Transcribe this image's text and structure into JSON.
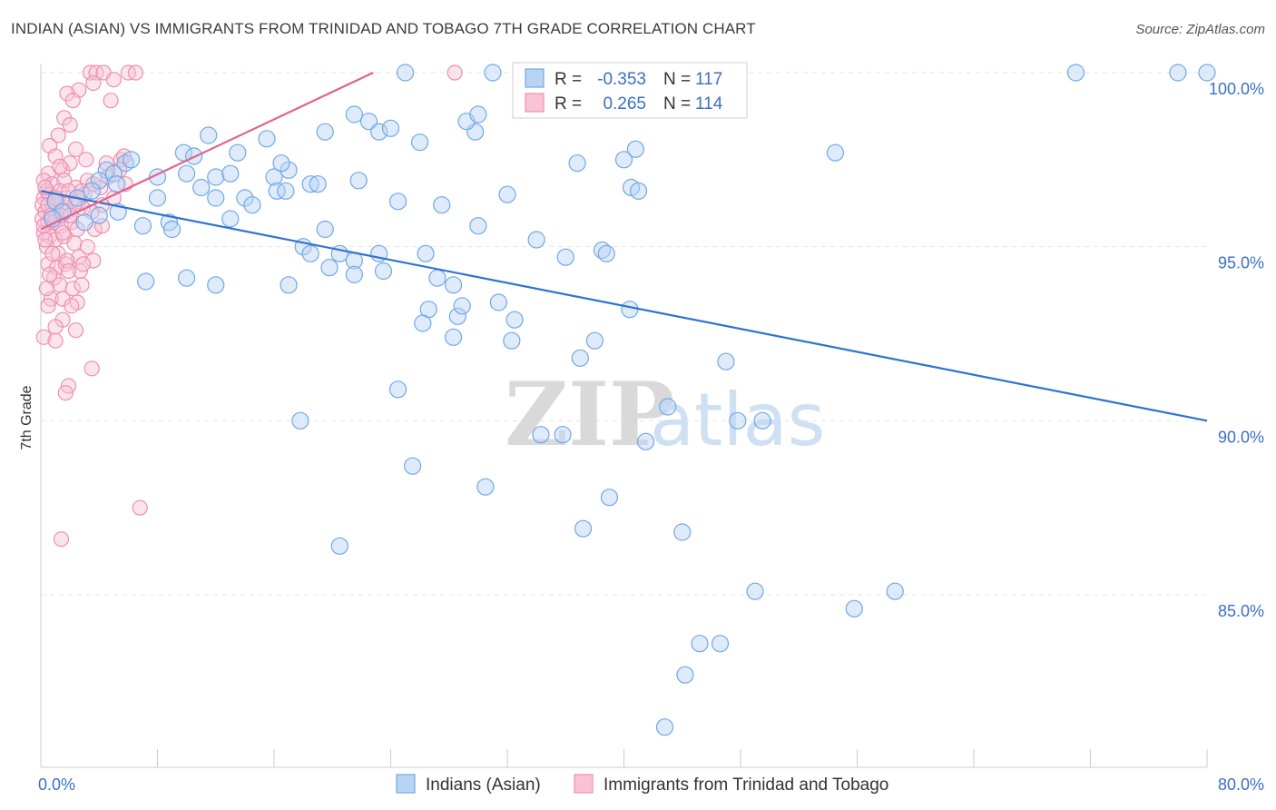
{
  "title": "INDIAN (ASIAN) VS IMMIGRANTS FROM TRINIDAD AND TOBAGO 7TH GRADE CORRELATION CHART",
  "source": "Source: ZipAtlas.com",
  "watermark": {
    "zip": "ZIP",
    "atlas": "atlas"
  },
  "colors": {
    "blue": "#6fa8e8",
    "blue_fill": "#b9d3f3",
    "blue_line": "#2f73d0",
    "pink": "#ee8fb0",
    "pink_fill": "#f7c3d5",
    "pink_line": "#e0648f",
    "tick": "#3b6fc4",
    "grid": "#e5e5e5"
  },
  "chart_data": {
    "type": "scatter",
    "title": "INDIAN (ASIAN) VS IMMIGRANTS FROM TRINIDAD AND TOBAGO 7TH GRADE CORRELATION CHART",
    "xlabel": "",
    "ylabel": "7th Grade",
    "xlim": [
      0,
      80
    ],
    "ylim": [
      80.5,
      100.5
    ],
    "x_ticks_labeled": [
      "0.0%",
      "80.0%"
    ],
    "y_ticks": [
      {
        "value": 100,
        "label": "100.0%"
      },
      {
        "value": 95,
        "label": "95.0%"
      },
      {
        "value": 90,
        "label": "90.0%"
      },
      {
        "value": 85,
        "label": "85.0%"
      }
    ],
    "grid": true,
    "legend": {
      "position": "top-center",
      "rows": [
        {
          "r_label": "R =",
          "r_value": "-0.353",
          "n_label": "N =",
          "n_value": "117"
        },
        {
          "r_label": "R =",
          "r_value": "0.265",
          "n_label": "N =",
          "n_value": "114"
        }
      ]
    },
    "series": [
      {
        "name": "Indians (Asian)",
        "color": "#6fa8e8",
        "trend": {
          "x0": 0,
          "y0": 96.6,
          "x1": 80,
          "y1": 90.0
        },
        "points": [
          [
            25,
            100
          ],
          [
            31,
            100
          ],
          [
            71,
            100
          ],
          [
            78,
            100
          ],
          [
            80,
            100
          ],
          [
            21.5,
            98.8
          ],
          [
            22.5,
            98.6
          ],
          [
            23.2,
            98.3
          ],
          [
            24,
            98.4
          ],
          [
            26,
            98
          ],
          [
            29.8,
            98.3
          ],
          [
            29.2,
            98.6
          ],
          [
            30,
            98.8
          ],
          [
            19.5,
            98.3
          ],
          [
            11.5,
            98.2
          ],
          [
            9.8,
            97.7
          ],
          [
            10.5,
            97.6
          ],
          [
            13.5,
            97.7
          ],
          [
            15.5,
            98.1
          ],
          [
            5.8,
            97.4
          ],
          [
            6.2,
            97.5
          ],
          [
            4.5,
            97.2
          ],
          [
            5,
            97.1
          ],
          [
            8,
            97
          ],
          [
            10,
            97.1
          ],
          [
            12,
            97
          ],
          [
            13,
            97.1
          ],
          [
            16,
            97
          ],
          [
            17,
            97.2
          ],
          [
            16.5,
            97.4
          ],
          [
            18.5,
            96.8
          ],
          [
            19,
            96.8
          ],
          [
            21.8,
            96.9
          ],
          [
            16.2,
            96.6
          ],
          [
            16.8,
            96.6
          ],
          [
            11,
            96.7
          ],
          [
            12,
            96.4
          ],
          [
            14,
            96.4
          ],
          [
            14.5,
            96.2
          ],
          [
            8,
            96.4
          ],
          [
            4,
            96.9
          ],
          [
            5.2,
            96.8
          ],
          [
            3.5,
            96.6
          ],
          [
            2.5,
            96.4
          ],
          [
            1,
            96.3
          ],
          [
            1.5,
            96
          ],
          [
            0.8,
            95.8
          ],
          [
            4,
            95.9
          ],
          [
            5.3,
            96
          ],
          [
            3,
            95.7
          ],
          [
            7,
            95.6
          ],
          [
            8.8,
            95.7
          ],
          [
            9,
            95.5
          ],
          [
            13,
            95.8
          ],
          [
            19.5,
            95.5
          ],
          [
            24.5,
            96.3
          ],
          [
            27.5,
            96.2
          ],
          [
            32,
            96.5
          ],
          [
            36.8,
            97.4
          ],
          [
            40.5,
            96.7
          ],
          [
            40.8,
            97.8
          ],
          [
            41,
            96.6
          ],
          [
            54.5,
            97.7
          ],
          [
            40,
            97.5
          ],
          [
            34,
            95.2
          ],
          [
            30,
            95.6
          ],
          [
            18,
            95
          ],
          [
            18.5,
            94.8
          ],
          [
            20.5,
            94.8
          ],
          [
            21.5,
            94.6
          ],
          [
            23.2,
            94.8
          ],
          [
            19.8,
            94.4
          ],
          [
            26.4,
            94.8
          ],
          [
            36,
            94.7
          ],
          [
            38.5,
            94.9
          ],
          [
            38.8,
            94.8
          ],
          [
            21.5,
            94.2
          ],
          [
            23.5,
            94.3
          ],
          [
            17,
            93.9
          ],
          [
            7.2,
            94
          ],
          [
            10,
            94.1
          ],
          [
            12,
            93.9
          ],
          [
            27.2,
            94.1
          ],
          [
            28.3,
            93.9
          ],
          [
            26.6,
            93.2
          ],
          [
            28.6,
            93
          ],
          [
            28.9,
            93.3
          ],
          [
            31.4,
            93.4
          ],
          [
            32.5,
            92.9
          ],
          [
            26.2,
            92.8
          ],
          [
            40.4,
            93.2
          ],
          [
            28.3,
            92.4
          ],
          [
            32.3,
            92.3
          ],
          [
            38,
            92.3
          ],
          [
            37,
            91.8
          ],
          [
            47,
            91.7
          ],
          [
            24.5,
            90.9
          ],
          [
            43,
            90.4
          ],
          [
            17.8,
            90
          ],
          [
            34.3,
            89.6
          ],
          [
            35.8,
            89.6
          ],
          [
            47.8,
            90
          ],
          [
            49.5,
            90
          ],
          [
            41.5,
            89.4
          ],
          [
            25.5,
            88.7
          ],
          [
            30.5,
            88.1
          ],
          [
            39,
            87.8
          ],
          [
            37.2,
            86.9
          ],
          [
            44,
            86.8
          ],
          [
            20.5,
            86.4
          ],
          [
            49,
            85.1
          ],
          [
            58.6,
            85.1
          ],
          [
            55.8,
            84.6
          ],
          [
            45.2,
            83.6
          ],
          [
            46.6,
            83.6
          ],
          [
            44.2,
            82.7
          ],
          [
            42.8,
            81.2
          ]
        ]
      },
      {
        "name": "Immigrants from Trinidad and Tobago",
        "color": "#ee8fb0",
        "trend": {
          "x0": 0,
          "y0": 95.5,
          "x1": 22.8,
          "y1": 100
        },
        "points": [
          [
            3.4,
            100
          ],
          [
            3.8,
            100
          ],
          [
            4.3,
            100
          ],
          [
            6,
            100
          ],
          [
            6.5,
            100
          ],
          [
            28.4,
            100
          ],
          [
            3.6,
            99.7
          ],
          [
            5,
            99.8
          ],
          [
            2.6,
            99.5
          ],
          [
            1.8,
            99.4
          ],
          [
            2.2,
            99.2
          ],
          [
            4.8,
            99.2
          ],
          [
            1.6,
            98.7
          ],
          [
            1.2,
            98.2
          ],
          [
            2,
            98.5
          ],
          [
            0.6,
            97.9
          ],
          [
            1,
            97.6
          ],
          [
            2.4,
            97.8
          ],
          [
            3.1,
            97.5
          ],
          [
            5.5,
            97.5
          ],
          [
            5.4,
            97.2
          ],
          [
            0.5,
            97.1
          ],
          [
            1.5,
            97.2
          ],
          [
            0.2,
            96.9
          ],
          [
            0.8,
            96.8
          ],
          [
            1.6,
            96.9
          ],
          [
            2.4,
            96.7
          ],
          [
            3.2,
            96.9
          ],
          [
            4.1,
            96.7
          ],
          [
            5.8,
            96.8
          ],
          [
            0.4,
            96.6
          ],
          [
            0.2,
            96.4
          ],
          [
            0.6,
            96.5
          ],
          [
            1.2,
            96.3
          ],
          [
            1.7,
            96.4
          ],
          [
            2.6,
            96.3
          ],
          [
            4.2,
            96.2
          ],
          [
            5,
            96.4
          ],
          [
            0.1,
            96.2
          ],
          [
            0.3,
            96
          ],
          [
            0.8,
            96.1
          ],
          [
            1.1,
            95.9
          ],
          [
            1.8,
            96
          ],
          [
            2.9,
            96.1
          ],
          [
            3.5,
            96
          ],
          [
            0.1,
            95.8
          ],
          [
            0.5,
            95.7
          ],
          [
            0.9,
            95.7
          ],
          [
            1.4,
            95.6
          ],
          [
            2.1,
            95.7
          ],
          [
            2.5,
            95.5
          ],
          [
            3.7,
            95.5
          ],
          [
            4.2,
            95.6
          ],
          [
            0.2,
            95.4
          ],
          [
            0.6,
            95.3
          ],
          [
            1,
            95.2
          ],
          [
            1.6,
            95.3
          ],
          [
            2.3,
            95.1
          ],
          [
            3.2,
            95
          ],
          [
            0.4,
            95
          ],
          [
            1.2,
            94.8
          ],
          [
            2.6,
            94.7
          ],
          [
            3.6,
            94.6
          ],
          [
            0.5,
            94.5
          ],
          [
            1.1,
            94.4
          ],
          [
            1.7,
            94.5
          ],
          [
            2.7,
            94.3
          ],
          [
            0.9,
            94.1
          ],
          [
            1.3,
            93.9
          ],
          [
            2.2,
            93.8
          ],
          [
            2.8,
            93.9
          ],
          [
            0.7,
            93.5
          ],
          [
            1.5,
            93.5
          ],
          [
            2.5,
            93.4
          ],
          [
            0.5,
            93.3
          ],
          [
            1.5,
            92.9
          ],
          [
            2.4,
            92.6
          ],
          [
            0.2,
            92.4
          ],
          [
            1,
            92.7
          ],
          [
            3.5,
            91.5
          ],
          [
            1.9,
            91
          ],
          [
            1.7,
            90.8
          ],
          [
            1,
            92.3
          ],
          [
            6.8,
            87.5
          ],
          [
            1.4,
            86.6
          ],
          [
            1.3,
            96.6
          ],
          [
            1.9,
            96.6
          ],
          [
            2.3,
            96.2
          ],
          [
            3,
            96.5
          ],
          [
            0.3,
            96.7
          ],
          [
            0.9,
            96.3
          ],
          [
            1.4,
            95.9
          ],
          [
            2,
            95.9
          ],
          [
            0.5,
            96.2
          ],
          [
            1,
            96.4
          ],
          [
            0.2,
            95.6
          ],
          [
            0.7,
            95.9
          ],
          [
            1.5,
            95.4
          ],
          [
            2.8,
            96.6
          ],
          [
            3.6,
            96.8
          ],
          [
            4.6,
            97
          ],
          [
            0.3,
            95.2
          ],
          [
            0.8,
            94.8
          ],
          [
            1.8,
            94.6
          ],
          [
            2.9,
            94.5
          ],
          [
            0.6,
            94.2
          ],
          [
            1.9,
            94.3
          ],
          [
            0.4,
            93.8
          ],
          [
            2.1,
            93.3
          ],
          [
            4.5,
            97.4
          ],
          [
            5.7,
            97.6
          ],
          [
            2,
            97.4
          ],
          [
            1.3,
            97.3
          ]
        ]
      }
    ]
  },
  "bottom_legend": [
    {
      "label": "Indians (Asian)"
    },
    {
      "label": "Immigrants from Trinidad and Tobago"
    }
  ]
}
